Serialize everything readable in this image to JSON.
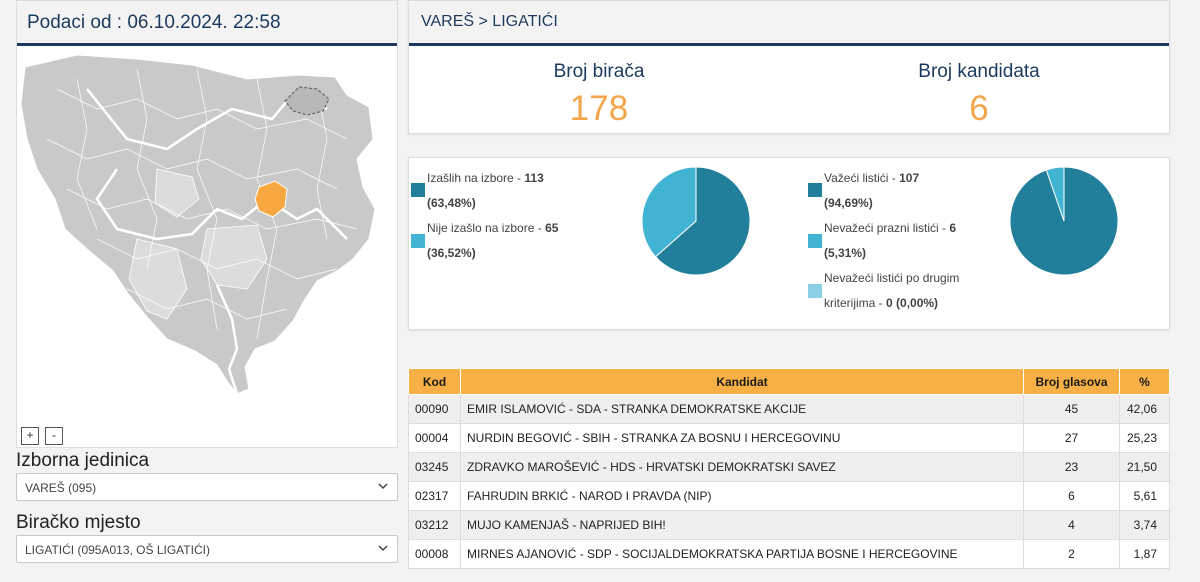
{
  "left": {
    "header_text": "Podaci od : 06.10.2024. 22:58",
    "zoom_in": "+",
    "zoom_out": "-"
  },
  "selectors": {
    "unit_label": "Izborna jedinica",
    "unit_value": "VAREŠ (095)",
    "station_label": "Biračko mjesto",
    "station_value": "LIGATIĆI (095A013, OŠ LIGATIĆI)"
  },
  "breadcrumb": "VAREŠ > LIGATIĆI",
  "stats": {
    "voters_label": "Broj birača",
    "voters_value": "178",
    "candidates_label": "Broj kandidata",
    "candidates_value": "6"
  },
  "turnout": {
    "items": [
      {
        "label": "Izašlih na izbore - ",
        "value": "113",
        "pct": "(63,48%)",
        "color": "#217f9b"
      },
      {
        "label": "Nije izašlo na izbore - ",
        "value": "65",
        "pct": "(36,52%)",
        "color": "#41b3d3"
      }
    ],
    "fractions": [
      0.6348,
      0.3652
    ]
  },
  "ballots": {
    "items": [
      {
        "label": "Važeći listići - ",
        "value": "107",
        "pct": "(94,69%)",
        "color": "#217f9b"
      },
      {
        "label": "Nevažeći prazni listići - ",
        "value": "6",
        "pct": "(5,31%)",
        "color": "#41b3d3"
      },
      {
        "label1": "Nevažeći listići po drugim",
        "label2": "kriterijima - ",
        "value": "0",
        "pct": "(0,00%)",
        "color": "#8ad0e6"
      }
    ],
    "fractions": [
      0.9469,
      0.0531,
      0.0
    ]
  },
  "table": {
    "headers": [
      "Kod",
      "Kandidat",
      "Broj glasova",
      "%"
    ],
    "rows": [
      {
        "kod": "00090",
        "kandidat": "EMIR ISLAMOVIĆ - SDA - STRANKA DEMOKRATSKE AKCIJE",
        "glasova": "45",
        "pct": "42,06"
      },
      {
        "kod": "00004",
        "kandidat": "NURDIN BEGOVIĆ - SBIH - STRANKA ZA BOSNU I HERCEGOVINU",
        "glasova": "27",
        "pct": "25,23"
      },
      {
        "kod": "03245",
        "kandidat": "ZDRAVKO MAROŠEVIĆ - HDS - HRVATSKI DEMOKRATSKI SAVEZ",
        "glasova": "23",
        "pct": "21,50"
      },
      {
        "kod": "02317",
        "kandidat": "FAHRUDIN BRKIĆ - NAROD I PRAVDA (NIP)",
        "glasova": "6",
        "pct": "5,61"
      },
      {
        "kod": "03212",
        "kandidat": "MUJO KAMENJAŠ - NAPRIJED BIH!",
        "glasova": "4",
        "pct": "3,74"
      },
      {
        "kod": "00008",
        "kandidat": "MIRNES AJANOVIĆ - SDP - SOCIJALDEMOKRATSKA PARTIJA BOSNE I HERCEGOVINE",
        "glasova": "2",
        "pct": "1,87"
      }
    ]
  },
  "colors": {
    "accent_navy": "#1c3a5e",
    "accent_orange": "#f3a64a",
    "map_gray": "#c9c9c9",
    "map_highlight": "#f7a840"
  }
}
